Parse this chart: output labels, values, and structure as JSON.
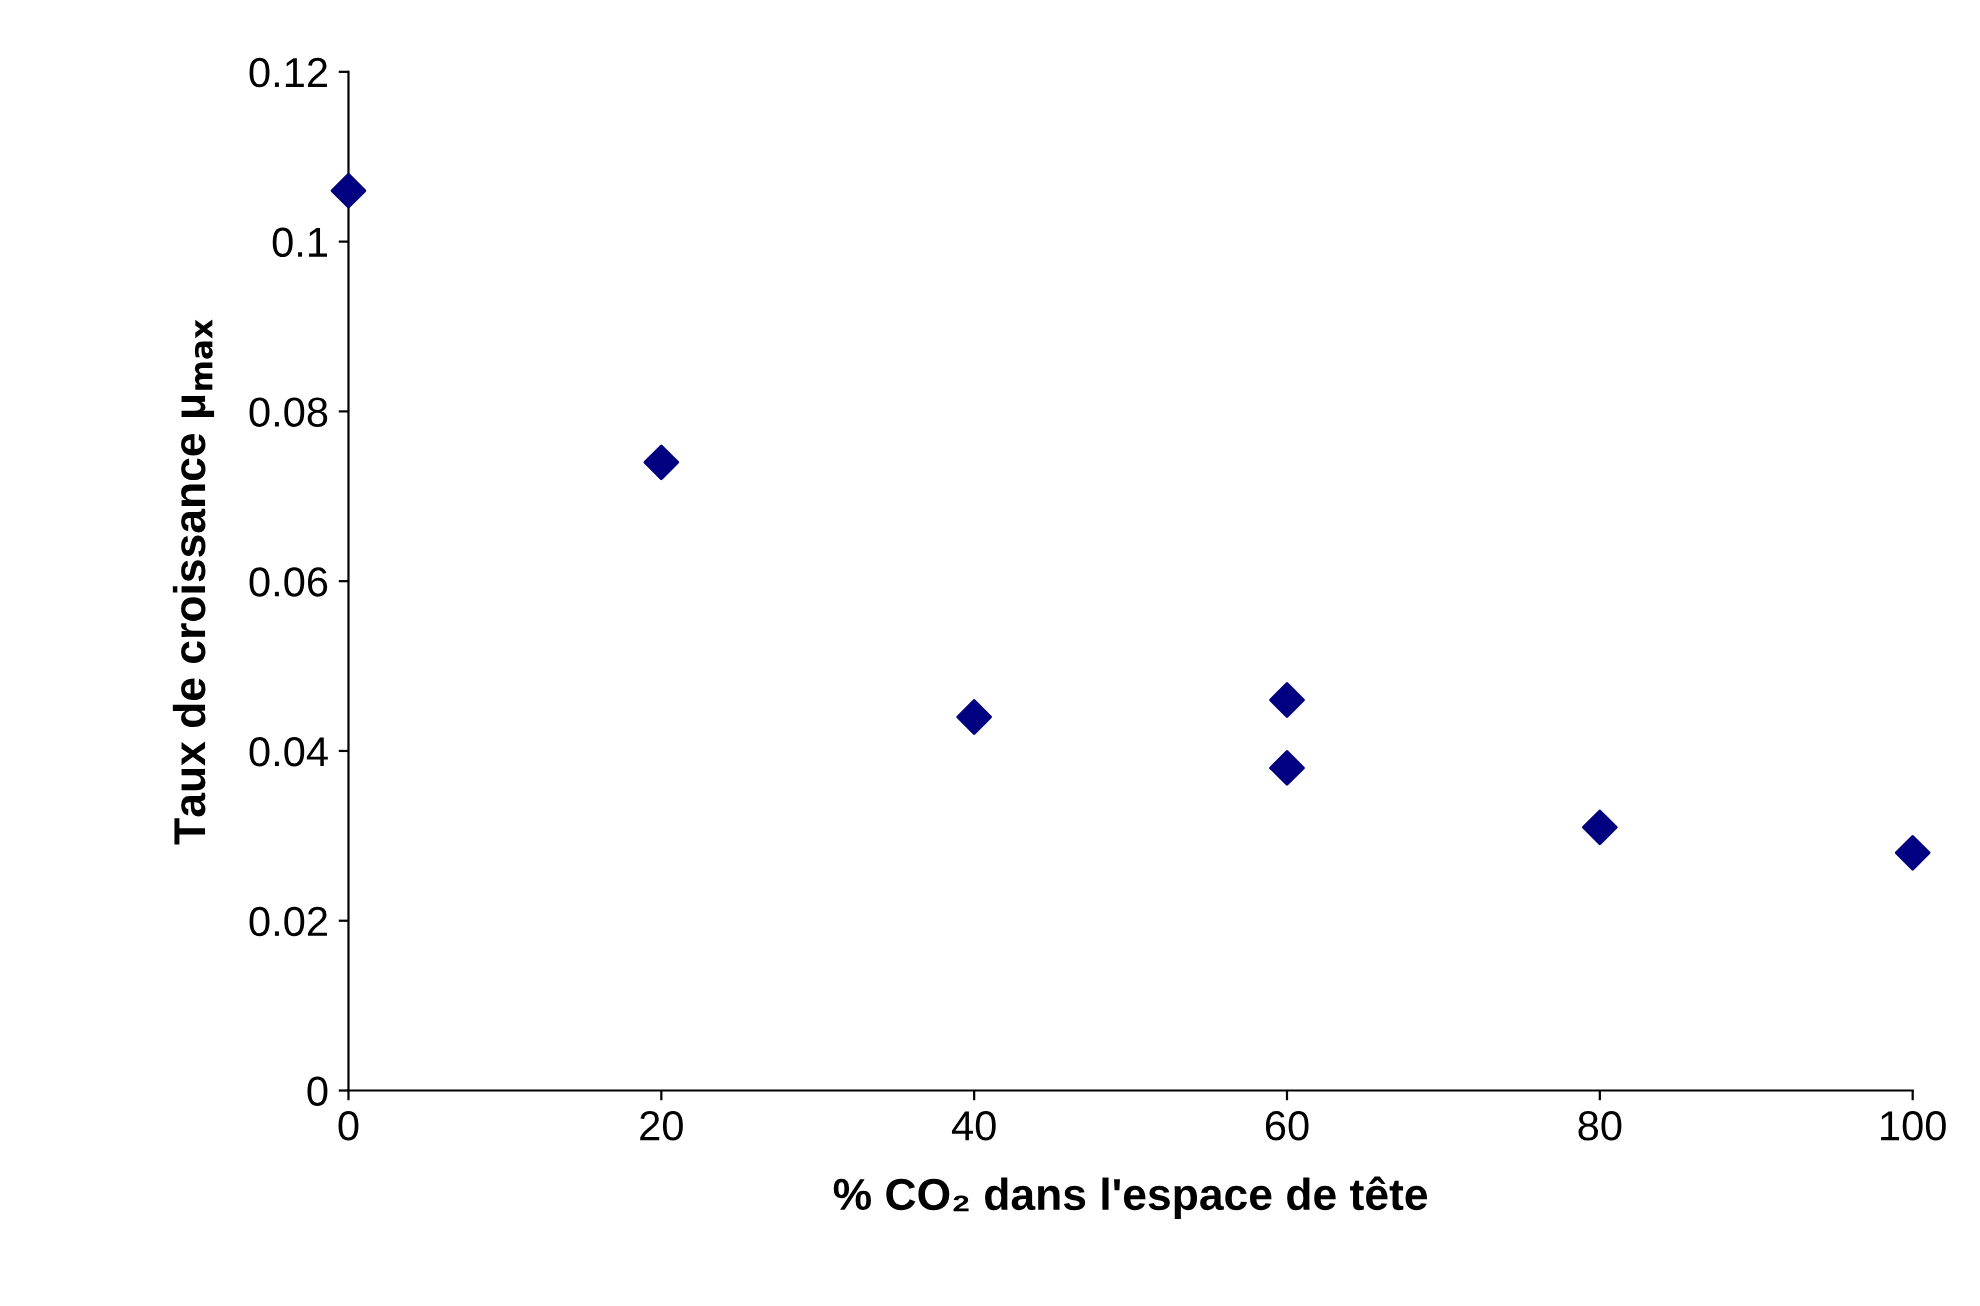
{
  "chart_data": {
    "type": "scatter",
    "xlabel": "% CO₂ dans l'espace de tête",
    "ylabel": "Taux de croissance μ$_{max}$",
    "series": [
      {
        "color": "#000080",
        "x": [
          0,
          20,
          40,
          60,
          60,
          80,
          100
        ],
        "values": [
          0.106,
          0.074,
          0.044,
          0.046,
          0.038,
          0.031,
          0.028
        ]
      }
    ],
    "xlim": [
      0,
      100
    ],
    "xticks": [
      0,
      20,
      40,
      60,
      80,
      100
    ],
    "ylim": [
      0,
      0.12
    ],
    "yticks": [
      {
        "value": 0,
        "label": "0"
      },
      {
        "value": 0.02,
        "label": "0.02"
      },
      {
        "value": 0.04,
        "label": "0.04"
      },
      {
        "value": 0.06,
        "label": "0.06"
      },
      {
        "value": 0.08,
        "label": "0.08"
      },
      {
        "value": 0.1,
        "label": "0.1"
      },
      {
        "value": 0.12,
        "label": "0.12"
      }
    ],
    "marker": "diamond",
    "grid": false
  }
}
